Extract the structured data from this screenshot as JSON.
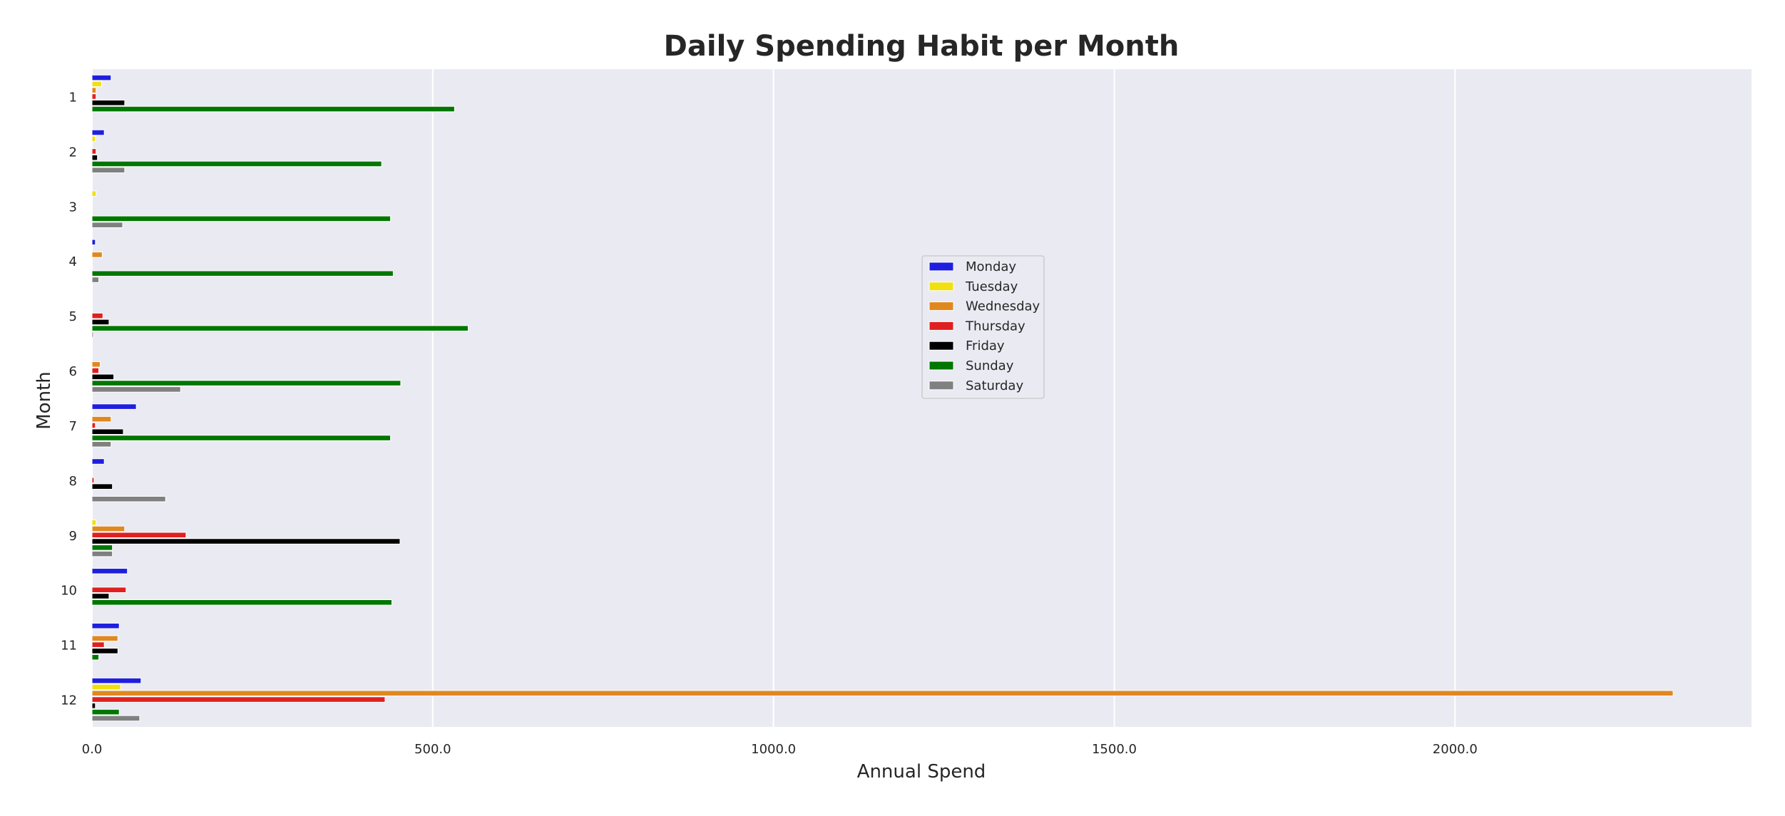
{
  "chart_data": {
    "type": "bar",
    "orientation": "horizontal",
    "title": "Daily Spending Habit per Month",
    "xlabel": "Annual Spend",
    "ylabel": "Month",
    "xlim": [
      0,
      2435
    ],
    "xticks": [
      "0.0",
      "500.0",
      "1000.0",
      "1500.0",
      "2000.0"
    ],
    "grid": true,
    "legend_position": "center",
    "categories": [
      "1",
      "2",
      "3",
      "4",
      "5",
      "6",
      "7",
      "8",
      "9",
      "10",
      "11",
      "12"
    ],
    "series": [
      {
        "name": "Monday",
        "color": "#1f1fdf",
        "values": [
          28,
          18,
          0,
          5,
          0,
          0,
          65,
          18,
          0,
          52,
          40,
          72
        ]
      },
      {
        "name": "Tuesday",
        "color": "#f0e010",
        "values": [
          14,
          5,
          6,
          0,
          0,
          0,
          0,
          0,
          6,
          0,
          0,
          42
        ]
      },
      {
        "name": "Wednesday",
        "color": "#e08820",
        "values": [
          6,
          0,
          0,
          15,
          0,
          12,
          28,
          0,
          48,
          0,
          38,
          2320
        ]
      },
      {
        "name": "Thursday",
        "color": "#e02020",
        "values": [
          6,
          6,
          0,
          0,
          16,
          10,
          5,
          3,
          138,
          50,
          18,
          430
        ]
      },
      {
        "name": "Friday",
        "color": "#000000",
        "values": [
          48,
          8,
          0,
          0,
          25,
          32,
          46,
          30,
          452,
          25,
          38,
          5
        ]
      },
      {
        "name": "Sunday",
        "color": "#007700",
        "values": [
          532,
          425,
          438,
          442,
          552,
          453,
          438,
          0,
          30,
          440,
          10,
          40
        ]
      },
      {
        "name": "Saturday",
        "color": "#808080",
        "values": [
          0,
          48,
          45,
          10,
          2,
          130,
          28,
          108,
          30,
          0,
          0,
          70
        ]
      }
    ]
  }
}
